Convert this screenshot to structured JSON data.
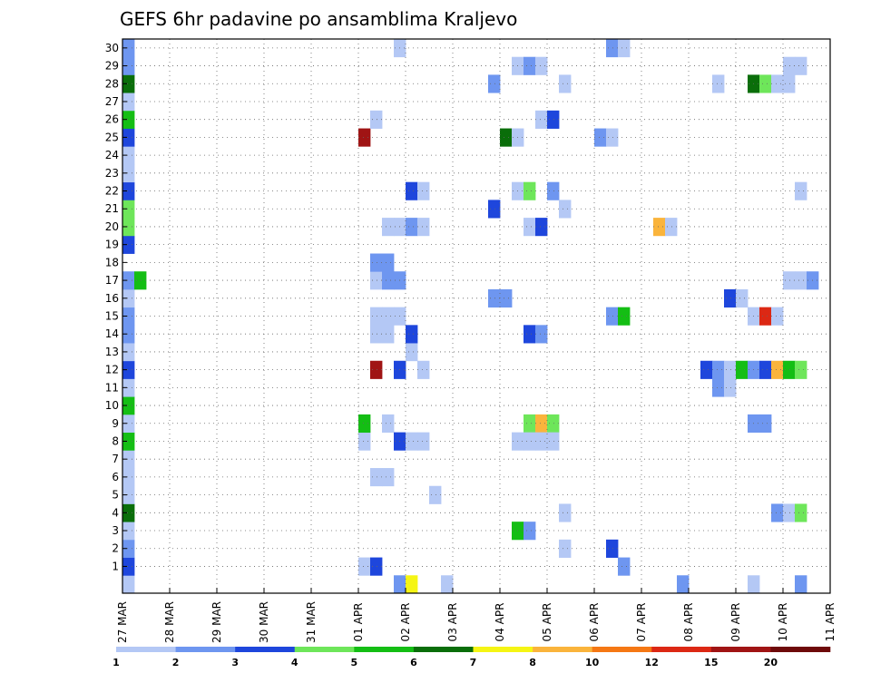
{
  "chart_data": {
    "type": "heatmap",
    "title": "GEFS 6hr padavine po ansamblima Kraljevo",
    "xlabel": "",
    "ylabel": "",
    "grid": true,
    "x_ticks": [
      "27 MAR",
      "28 MAR",
      "29 MAR",
      "30 MAR",
      "31 MAR",
      "01 APR",
      "02 APR",
      "03 APR",
      "04 APR",
      "05 APR",
      "06 APR",
      "07 APR",
      "08 APR",
      "09 APR",
      "10 APR",
      "11 APR"
    ],
    "y_ticks": [
      "1",
      "2",
      "3",
      "4",
      "5",
      "6",
      "7",
      "8",
      "9",
      "10",
      "11",
      "12",
      "13",
      "14",
      "15",
      "16",
      "17",
      "18",
      "19",
      "20",
      "21",
      "22",
      "23",
      "24",
      "25",
      "26",
      "27",
      "28",
      "29",
      "30"
    ],
    "time_step_hours": 6,
    "colorbar": {
      "labels": [
        "1",
        "2",
        "3",
        "4",
        "5",
        "6",
        "7",
        "8",
        "10",
        "12",
        "15",
        "20"
      ],
      "colors": [
        "#b4c8f5",
        "#6e96f0",
        "#1e46dc",
        "#6ee65a",
        "#14be14",
        "#0a6e0a",
        "#f5f514",
        "#fab43c",
        "#f57814",
        "#dc2814",
        "#a01414",
        "#6e0a0a"
      ]
    },
    "cells": [
      {
        "time_index": 4,
        "member": 0,
        "level": 1
      },
      {
        "time_index": 4,
        "member": 1,
        "level": 3
      },
      {
        "time_index": 4,
        "member": 2,
        "level": 2
      },
      {
        "time_index": 4,
        "member": 3,
        "level": 1
      },
      {
        "time_index": 4,
        "member": 4,
        "level": 6
      },
      {
        "time_index": 4,
        "member": 5,
        "level": 1
      },
      {
        "time_index": 4,
        "member": 6,
        "level": 1
      },
      {
        "time_index": 4,
        "member": 7,
        "level": 1
      },
      {
        "time_index": 4,
        "member": 8,
        "level": 5
      },
      {
        "time_index": 4,
        "member": 9,
        "level": 1
      },
      {
        "time_index": 4,
        "member": 10,
        "level": 5
      },
      {
        "time_index": 4,
        "member": 11,
        "level": 1
      },
      {
        "time_index": 4,
        "member": 12,
        "level": 3
      },
      {
        "time_index": 4,
        "member": 13,
        "level": 1
      },
      {
        "time_index": 4,
        "member": 14,
        "level": 2
      },
      {
        "time_index": 4,
        "member": 15,
        "level": 2
      },
      {
        "time_index": 4,
        "member": 16,
        "level": 1
      },
      {
        "time_index": 4,
        "member": 17,
        "level": 2
      },
      {
        "time_index": 4,
        "member": 19,
        "level": 3
      },
      {
        "time_index": 4,
        "member": 20,
        "level": 4
      },
      {
        "time_index": 4,
        "member": 21,
        "level": 4
      },
      {
        "time_index": 4,
        "member": 22,
        "level": 3
      },
      {
        "time_index": 4,
        "member": 23,
        "level": 1
      },
      {
        "time_index": 4,
        "member": 24,
        "level": 1
      },
      {
        "time_index": 4,
        "member": 25,
        "level": 3
      },
      {
        "time_index": 4,
        "member": 26,
        "level": 5
      },
      {
        "time_index": 4,
        "member": 27,
        "level": 1
      },
      {
        "time_index": 4,
        "member": 28,
        "level": 6
      },
      {
        "time_index": 4,
        "member": 29,
        "level": 2
      },
      {
        "time_index": 4,
        "member": 30,
        "level": 2
      },
      {
        "time_index": 5,
        "member": 17,
        "level": 5
      },
      {
        "time_index": 24,
        "member": 25,
        "level": 11
      },
      {
        "time_index": 24,
        "member": 8,
        "level": 1
      },
      {
        "time_index": 24,
        "member": 9,
        "level": 5
      },
      {
        "time_index": 24,
        "member": 1,
        "level": 1
      },
      {
        "time_index": 25,
        "member": 12,
        "level": 11
      },
      {
        "time_index": 25,
        "member": 1,
        "level": 3
      },
      {
        "time_index": 25,
        "member": 6,
        "level": 1
      },
      {
        "time_index": 25,
        "member": 14,
        "level": 1
      },
      {
        "time_index": 25,
        "member": 15,
        "level": 1
      },
      {
        "time_index": 25,
        "member": 17,
        "level": 1
      },
      {
        "time_index": 25,
        "member": 18,
        "level": 2
      },
      {
        "time_index": 25,
        "member": 26,
        "level": 1
      },
      {
        "time_index": 26,
        "member": 6,
        "level": 1
      },
      {
        "time_index": 26,
        "member": 9,
        "level": 1
      },
      {
        "time_index": 26,
        "member": 14,
        "level": 1
      },
      {
        "time_index": 26,
        "member": 15,
        "level": 1
      },
      {
        "time_index": 26,
        "member": 17,
        "level": 2
      },
      {
        "time_index": 26,
        "member": 18,
        "level": 2
      },
      {
        "time_index": 26,
        "member": 20,
        "level": 1
      },
      {
        "time_index": 27,
        "member": 0,
        "level": 2
      },
      {
        "time_index": 27,
        "member": 8,
        "level": 3
      },
      {
        "time_index": 27,
        "member": 12,
        "level": 3
      },
      {
        "time_index": 27,
        "member": 15,
        "level": 1
      },
      {
        "time_index": 27,
        "member": 17,
        "level": 2
      },
      {
        "time_index": 27,
        "member": 20,
        "level": 1
      },
      {
        "time_index": 27,
        "member": 30,
        "level": 1
      },
      {
        "time_index": 28,
        "member": 0,
        "level": 7
      },
      {
        "time_index": 28,
        "member": 8,
        "level": 1
      },
      {
        "time_index": 28,
        "member": 13,
        "level": 1
      },
      {
        "time_index": 28,
        "member": 14,
        "level": 3
      },
      {
        "time_index": 28,
        "member": 20,
        "level": 2
      },
      {
        "time_index": 28,
        "member": 22,
        "level": 3
      },
      {
        "time_index": 29,
        "member": 8,
        "level": 1
      },
      {
        "time_index": 29,
        "member": 12,
        "level": 1
      },
      {
        "time_index": 29,
        "member": 20,
        "level": 1
      },
      {
        "time_index": 29,
        "member": 22,
        "level": 1
      },
      {
        "time_index": 30,
        "member": 5,
        "level": 1
      },
      {
        "time_index": 31,
        "member": 0,
        "level": 1
      },
      {
        "time_index": 35,
        "member": 21,
        "level": 3
      },
      {
        "time_index": 35,
        "member": 16,
        "level": 2
      },
      {
        "time_index": 35,
        "member": 28,
        "level": 2
      },
      {
        "time_index": 36,
        "member": 16,
        "level": 2
      },
      {
        "time_index": 36,
        "member": 25,
        "level": 6
      },
      {
        "time_index": 37,
        "member": 25,
        "level": 1
      },
      {
        "time_index": 37,
        "member": 29,
        "level": 1
      },
      {
        "time_index": 37,
        "member": 22,
        "level": 1
      },
      {
        "time_index": 37,
        "member": 3,
        "level": 5
      },
      {
        "time_index": 37,
        "member": 8,
        "level": 1
      },
      {
        "time_index": 38,
        "member": 29,
        "level": 2
      },
      {
        "time_index": 38,
        "member": 22,
        "level": 4
      },
      {
        "time_index": 38,
        "member": 20,
        "level": 1
      },
      {
        "time_index": 38,
        "member": 14,
        "level": 3
      },
      {
        "time_index": 38,
        "member": 9,
        "level": 4
      },
      {
        "time_index": 38,
        "member": 3,
        "level": 2
      },
      {
        "time_index": 38,
        "member": 8,
        "level": 1
      },
      {
        "time_index": 39,
        "member": 29,
        "level": 1
      },
      {
        "time_index": 39,
        "member": 26,
        "level": 1
      },
      {
        "time_index": 39,
        "member": 20,
        "level": 3
      },
      {
        "time_index": 39,
        "member": 14,
        "level": 2
      },
      {
        "time_index": 39,
        "member": 9,
        "level": 8
      },
      {
        "time_index": 39,
        "member": 8,
        "level": 1
      },
      {
        "time_index": 40,
        "member": 26,
        "level": 3
      },
      {
        "time_index": 40,
        "member": 22,
        "level": 2
      },
      {
        "time_index": 40,
        "member": 9,
        "level": 4
      },
      {
        "time_index": 40,
        "member": 8,
        "level": 1
      },
      {
        "time_index": 41,
        "member": 28,
        "level": 1
      },
      {
        "time_index": 41,
        "member": 21,
        "level": 1
      },
      {
        "time_index": 41,
        "member": 4,
        "level": 1
      },
      {
        "time_index": 41,
        "member": 2,
        "level": 1
      },
      {
        "time_index": 44,
        "member": 25,
        "level": 2
      },
      {
        "time_index": 45,
        "member": 30,
        "level": 2
      },
      {
        "time_index": 45,
        "member": 25,
        "level": 1
      },
      {
        "time_index": 45,
        "member": 15,
        "level": 2
      },
      {
        "time_index": 45,
        "member": 2,
        "level": 3
      },
      {
        "time_index": 46,
        "member": 30,
        "level": 1
      },
      {
        "time_index": 46,
        "member": 15,
        "level": 5
      },
      {
        "time_index": 46,
        "member": 1,
        "level": 2
      },
      {
        "time_index": 49,
        "member": 20,
        "level": 8
      },
      {
        "time_index": 50,
        "member": 20,
        "level": 1
      },
      {
        "time_index": 51,
        "member": 0,
        "level": 2
      },
      {
        "time_index": 53,
        "member": 12,
        "level": 3
      },
      {
        "time_index": 54,
        "member": 12,
        "level": 2
      },
      {
        "time_index": 54,
        "member": 11,
        "level": 2
      },
      {
        "time_index": 54,
        "member": 28,
        "level": 1
      },
      {
        "time_index": 55,
        "member": 16,
        "level": 3
      },
      {
        "time_index": 55,
        "member": 12,
        "level": 1
      },
      {
        "time_index": 55,
        "member": 11,
        "level": 1
      },
      {
        "time_index": 56,
        "member": 16,
        "level": 1
      },
      {
        "time_index": 56,
        "member": 12,
        "level": 5
      },
      {
        "time_index": 57,
        "member": 28,
        "level": 6
      },
      {
        "time_index": 57,
        "member": 12,
        "level": 2
      },
      {
        "time_index": 57,
        "member": 15,
        "level": 1
      },
      {
        "time_index": 57,
        "member": 9,
        "level": 2
      },
      {
        "time_index": 57,
        "member": 0,
        "level": 1
      },
      {
        "time_index": 58,
        "member": 28,
        "level": 4
      },
      {
        "time_index": 58,
        "member": 12,
        "level": 3
      },
      {
        "time_index": 58,
        "member": 15,
        "level": 10
      },
      {
        "time_index": 58,
        "member": 9,
        "level": 2
      },
      {
        "time_index": 59,
        "member": 28,
        "level": 1
      },
      {
        "time_index": 59,
        "member": 12,
        "level": 8
      },
      {
        "time_index": 59,
        "member": 15,
        "level": 1
      },
      {
        "time_index": 59,
        "member": 4,
        "level": 2
      },
      {
        "time_index": 60,
        "member": 28,
        "level": 1
      },
      {
        "time_index": 60,
        "member": 29,
        "level": 1
      },
      {
        "time_index": 60,
        "member": 12,
        "level": 5
      },
      {
        "time_index": 60,
        "member": 4,
        "level": 1
      },
      {
        "time_index": 60,
        "member": 17,
        "level": 1
      },
      {
        "time_index": 61,
        "member": 29,
        "level": 1
      },
      {
        "time_index": 61,
        "member": 22,
        "level": 1
      },
      {
        "time_index": 61,
        "member": 12,
        "level": 4
      },
      {
        "time_index": 61,
        "member": 4,
        "level": 4
      },
      {
        "time_index": 61,
        "member": 0,
        "level": 2
      },
      {
        "time_index": 61,
        "member": 17,
        "level": 1
      },
      {
        "time_index": 62,
        "member": 17,
        "level": 2
      }
    ]
  }
}
